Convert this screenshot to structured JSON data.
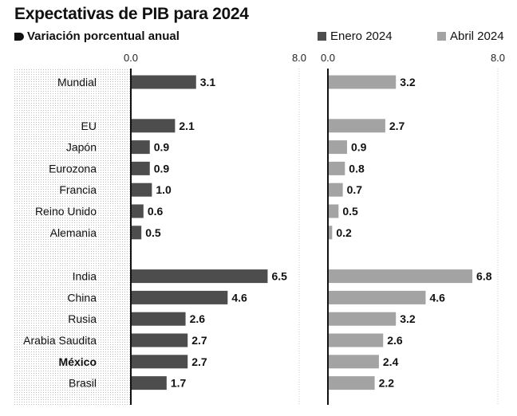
{
  "title": "Expectativas de PIB para 2024",
  "subtitle": "Variación porcentual anual",
  "legend": [
    {
      "label": "Enero 2024",
      "color": "#4d4d4d"
    },
    {
      "label": "Abril 2024",
      "color": "#a3a3a3"
    }
  ],
  "chart_data": {
    "type": "bar",
    "orientation": "horizontal",
    "title": "Expectativas de PIB para 2024",
    "subtitle": "Variación porcentual anual",
    "xlim": [
      0,
      8
    ],
    "ticks": [
      "0.0",
      "8.0"
    ],
    "groups": [
      [
        "Mundial"
      ],
      [
        "EU",
        "Japón",
        "Eurozona",
        "Francia",
        "Reino Unido",
        "Alemania"
      ],
      [
        "India",
        "China",
        "Rusia",
        "Arabia Saudita",
        "México",
        "Brasil"
      ]
    ],
    "highlight": "México",
    "categories": [
      "Mundial",
      "EU",
      "Japón",
      "Eurozona",
      "Francia",
      "Reino Unido",
      "Alemania",
      "India",
      "China",
      "Rusia",
      "Arabia Saudita",
      "México",
      "Brasil"
    ],
    "series": [
      {
        "name": "Enero 2024",
        "color": "#4d4d4d",
        "values": [
          3.1,
          2.1,
          0.9,
          0.9,
          1.0,
          0.6,
          0.5,
          6.5,
          4.6,
          2.6,
          2.7,
          2.7,
          1.7
        ],
        "labels": [
          "3.1",
          "2.1",
          "0.9",
          "0.9",
          "1.0",
          "0.6",
          "0.5",
          "6.5",
          "4.6",
          "2.6",
          "2.7",
          "2.7",
          "1.7"
        ]
      },
      {
        "name": "Abril 2024",
        "color": "#a3a3a3",
        "values": [
          3.2,
          2.7,
          0.9,
          0.8,
          0.7,
          0.5,
          0.2,
          6.8,
          4.6,
          3.2,
          2.6,
          2.4,
          2.2
        ],
        "labels": [
          "3.2",
          "2.7",
          "0.9",
          "0.8",
          "0.7",
          "0.5",
          "0.2",
          "6.8",
          "4.6",
          "3.2",
          "2.6",
          "2.4",
          "2.2"
        ]
      }
    ]
  }
}
